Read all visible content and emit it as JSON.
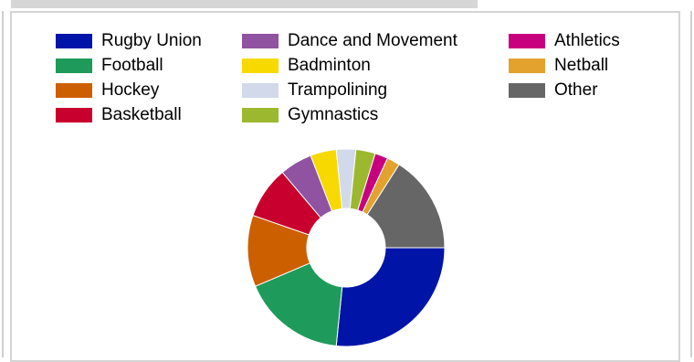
{
  "chart_data": {
    "type": "pie",
    "donut": true,
    "title": "",
    "legend_position": "top",
    "series": [
      {
        "name": "Rugby Union",
        "value": 25,
        "color": "#0015a8"
      },
      {
        "name": "Football",
        "value": 16,
        "color": "#1e9a5a"
      },
      {
        "name": "Hockey",
        "value": 11,
        "color": "#cc5f00"
      },
      {
        "name": "Basketball",
        "value": 8,
        "color": "#c8002d"
      },
      {
        "name": "Dance and Movement",
        "value": 5,
        "color": "#8f53a1"
      },
      {
        "name": "Badminton",
        "value": 4,
        "color": "#f7d900"
      },
      {
        "name": "Trampolining",
        "value": 3,
        "color": "#d2d9ea"
      },
      {
        "name": "Gymnastics",
        "value": 3,
        "color": "#9cb82f"
      },
      {
        "name": "Athletics",
        "value": 2,
        "color": "#c8007d"
      },
      {
        "name": "Netball",
        "value": 2,
        "color": "#e3a22e"
      },
      {
        "name": "Other",
        "value": 15,
        "color": "#666666"
      }
    ]
  }
}
